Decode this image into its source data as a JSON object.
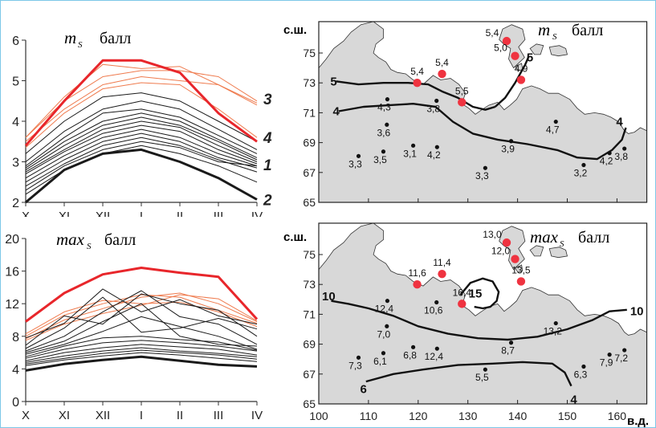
{
  "months": [
    "X",
    "XI",
    "XII",
    "I",
    "II",
    "III",
    "IV"
  ],
  "top_left": {
    "title_var": "m",
    "title_sub": "S",
    "title_unit": "балл",
    "ylim": [
      2,
      6
    ],
    "yticks": [
      "2",
      "3",
      "4",
      "5",
      "6"
    ],
    "curve_labels": [
      {
        "text": "3",
        "value": 4.55
      },
      {
        "text": "4",
        "value": 3.6
      },
      {
        "text": "1",
        "value": 2.93
      },
      {
        "text": "2",
        "value": 2.07
      }
    ]
  },
  "bottom_left": {
    "title_var": "max",
    "title_sub": "S",
    "title_unit": "балл",
    "ylim": [
      0,
      20
    ],
    "yticks": [
      "0",
      "4",
      "8",
      "12",
      "16",
      "20"
    ]
  },
  "top_map": {
    "lat_label": "с.ш.",
    "title_var": "m",
    "title_sub": "S",
    "title_unit": "балл",
    "lat_ticks": [
      "65",
      "67",
      "69",
      "71",
      "73",
      "75"
    ],
    "contour_labels": [
      {
        "text": "5",
        "lon": 103,
        "lat": 73.1
      },
      {
        "text": "4",
        "lon": 103.5,
        "lat": 71.1
      },
      {
        "text": "5",
        "lon": 142.5,
        "lat": 74.7
      },
      {
        "text": "4",
        "lon": 160.5,
        "lat": 70.4
      }
    ],
    "stations": [
      {
        "v": "5,4",
        "lon": 137.8,
        "lat": 75.8,
        "red": true
      },
      {
        "v": "5,0",
        "lon": 139.5,
        "lat": 74.8,
        "red": true
      },
      {
        "v": "4,9",
        "lon": 140.7,
        "lat": 73.2,
        "red": true
      },
      {
        "v": "5,4",
        "lon": 124.8,
        "lat": 73.6,
        "red": true
      },
      {
        "v": "5,4",
        "lon": 119.8,
        "lat": 73.0,
        "red": true
      },
      {
        "v": "5,5",
        "lon": 128.8,
        "lat": 71.7,
        "red": true
      },
      {
        "v": "4,3",
        "lon": 113.8,
        "lat": 71.9,
        "red": false
      },
      {
        "v": "3,8",
        "lon": 123.7,
        "lat": 71.8,
        "red": false
      },
      {
        "v": "3,6",
        "lon": 113.7,
        "lat": 70.2,
        "red": false
      },
      {
        "v": "3,1",
        "lon": 119.0,
        "lat": 68.8,
        "red": false
      },
      {
        "v": "4,2",
        "lon": 123.8,
        "lat": 68.7,
        "red": false
      },
      {
        "v": "3,3",
        "lon": 108.0,
        "lat": 68.1,
        "red": false
      },
      {
        "v": "3,5",
        "lon": 113.0,
        "lat": 68.4,
        "red": false
      },
      {
        "v": "3,9",
        "lon": 138.7,
        "lat": 69.1,
        "red": false
      },
      {
        "v": "3,3",
        "lon": 133.5,
        "lat": 67.3,
        "red": false
      },
      {
        "v": "4,7",
        "lon": 147.7,
        "lat": 70.4,
        "red": false
      },
      {
        "v": "4,2",
        "lon": 158.5,
        "lat": 68.3,
        "red": false
      },
      {
        "v": "3,2",
        "lon": 153.3,
        "lat": 67.5,
        "red": false
      },
      {
        "v": "3,8",
        "lon": 161.5,
        "lat": 68.6,
        "red": false
      }
    ]
  },
  "bottom_map": {
    "lat_label": "с.ш.",
    "title_var": "max",
    "title_sub": "S",
    "title_unit": "балл",
    "lat_ticks": [
      "65",
      "67",
      "69",
      "71",
      "73",
      "75"
    ],
    "lon_ticks": [
      "100",
      "110",
      "120",
      "130",
      "140",
      "150",
      "160"
    ],
    "lon_label": "в.д.",
    "contour_labels": [
      {
        "text": "10",
        "lon": 102,
        "lat": 72.2
      },
      {
        "text": "15",
        "lon": 131.5,
        "lat": 72.4
      },
      {
        "text": "10",
        "lon": 164.0,
        "lat": 71.2
      },
      {
        "text": "6",
        "lon": 109.0,
        "lat": 66.0
      },
      {
        "text": "4",
        "lon": 151.3,
        "lat": 65.3
      }
    ],
    "stations": [
      {
        "v": "13,0",
        "lon": 137.8,
        "lat": 75.8,
        "red": true
      },
      {
        "v": "12,0",
        "lon": 139.5,
        "lat": 74.7,
        "red": true
      },
      {
        "v": "13,5",
        "lon": 140.7,
        "lat": 73.2,
        "red": true
      },
      {
        "v": "11,4",
        "lon": 124.8,
        "lat": 73.7,
        "red": true
      },
      {
        "v": "11,6",
        "lon": 119.8,
        "lat": 73.0,
        "red": true
      },
      {
        "v": "16,4",
        "lon": 128.8,
        "lat": 71.7,
        "red": true
      },
      {
        "v": "12,4",
        "lon": 113.8,
        "lat": 71.9,
        "red": false
      },
      {
        "v": "10,6",
        "lon": 123.7,
        "lat": 71.8,
        "red": false
      },
      {
        "v": "7,0",
        "lon": 113.7,
        "lat": 70.2,
        "red": false
      },
      {
        "v": "6,8",
        "lon": 119.0,
        "lat": 68.8,
        "red": false
      },
      {
        "v": "12,4",
        "lon": 123.8,
        "lat": 68.7,
        "red": false
      },
      {
        "v": "7,3",
        "lon": 108.0,
        "lat": 68.1,
        "red": false
      },
      {
        "v": "6,1",
        "lon": 113.0,
        "lat": 68.4,
        "red": false
      },
      {
        "v": "8,7",
        "lon": 138.7,
        "lat": 69.1,
        "red": false
      },
      {
        "v": "5,5",
        "lon": 133.5,
        "lat": 67.3,
        "red": false
      },
      {
        "v": "13,2",
        "lon": 147.7,
        "lat": 70.4,
        "red": false
      },
      {
        "v": "7,9",
        "lon": 158.5,
        "lat": 68.3,
        "red": false
      },
      {
        "v": "6,3",
        "lon": 153.3,
        "lat": 67.5,
        "red": false
      },
      {
        "v": "7,2",
        "lon": 161.5,
        "lat": 68.6,
        "red": false
      }
    ]
  },
  "chart_data": [
    {
      "type": "line",
      "title": "mS, балл",
      "categories": [
        "X",
        "XI",
        "XII",
        "I",
        "II",
        "III",
        "IV"
      ],
      "ylim": [
        2,
        6
      ],
      "grid": false,
      "colors": {
        "red": "#e8262b",
        "red_light": "#ef7b4e",
        "black": "#111111"
      },
      "series": [
        {
          "name": "3",
          "color": "red",
          "bold": true,
          "values": [
            3.4,
            4.5,
            5.5,
            5.5,
            5.2,
            4.2,
            3.5
          ]
        },
        {
          "color": "red_light",
          "values": [
            3.6,
            4.6,
            5.4,
            5.3,
            5.35,
            4.9,
            4.4
          ]
        },
        {
          "color": "red_light",
          "values": [
            3.6,
            4.5,
            5.1,
            5.25,
            5.25,
            5.1,
            4.5
          ]
        },
        {
          "color": "red_light",
          "values": [
            3.5,
            4.3,
            4.9,
            5.1,
            5.0,
            4.9,
            4.45
          ]
        },
        {
          "color": "red_light",
          "values": [
            3.35,
            4.2,
            4.8,
            4.95,
            4.9,
            4.3,
            3.6
          ]
        },
        {
          "color": "black",
          "values": [
            3.2,
            4.0,
            4.6,
            4.7,
            4.5,
            4.0,
            3.5
          ]
        },
        {
          "color": "black",
          "values": [
            3.0,
            3.75,
            4.3,
            4.5,
            4.3,
            3.8,
            3.3
          ]
        },
        {
          "color": "black",
          "values": [
            2.9,
            3.6,
            4.2,
            4.3,
            4.1,
            3.65,
            3.2
          ]
        },
        {
          "color": "black",
          "values": [
            2.85,
            3.5,
            4.0,
            4.2,
            4.0,
            3.55,
            3.1
          ]
        },
        {
          "color": "black",
          "values": [
            2.8,
            3.4,
            3.9,
            4.1,
            3.9,
            3.5,
            3.05
          ]
        },
        {
          "color": "black",
          "values": [
            2.75,
            3.3,
            3.8,
            4.0,
            3.85,
            3.4,
            3.0
          ]
        },
        {
          "color": "black",
          "values": [
            2.7,
            3.25,
            3.7,
            3.9,
            3.75,
            3.3,
            2.95
          ]
        },
        {
          "color": "black",
          "values": [
            2.6,
            3.15,
            3.6,
            3.8,
            3.6,
            3.2,
            2.9
          ]
        },
        {
          "color": "black",
          "values": [
            2.5,
            3.05,
            3.5,
            3.7,
            3.5,
            3.1,
            2.85
          ]
        },
        {
          "color": "black",
          "values": [
            2.4,
            2.95,
            3.4,
            3.6,
            3.4,
            3.05,
            2.75
          ]
        },
        {
          "name": "1",
          "color": "black",
          "values": [
            2.3,
            2.9,
            3.3,
            3.5,
            3.35,
            3.0,
            2.9
          ]
        },
        {
          "color": "black",
          "values": [
            2.2,
            2.8,
            3.2,
            3.4,
            3.2,
            2.9,
            2.5
          ]
        },
        {
          "name": "2",
          "color": "black",
          "bold": true,
          "values": [
            2.0,
            2.8,
            3.2,
            3.3,
            3.0,
            2.6,
            2.07
          ]
        }
      ]
    },
    {
      "type": "line",
      "title": "maxS, балл",
      "categories": [
        "X",
        "XI",
        "XII",
        "I",
        "II",
        "III",
        "IV"
      ],
      "ylim": [
        0,
        20
      ],
      "grid": false,
      "series": [
        {
          "color": "red",
          "bold": true,
          "values": [
            9.8,
            13.3,
            15.6,
            16.4,
            15.8,
            15.3,
            10.1
          ]
        },
        {
          "color": "red_light",
          "values": [
            8.0,
            10.6,
            12.0,
            13.1,
            12.8,
            11.2,
            9.6
          ]
        },
        {
          "color": "red_light",
          "values": [
            7.7,
            10.0,
            11.4,
            12.8,
            13.3,
            12.0,
            9.8
          ]
        },
        {
          "color": "red_light",
          "values": [
            8.3,
            11.0,
            12.4,
            12.0,
            12.2,
            11.0,
            9.2
          ]
        },
        {
          "color": "red_light",
          "values": [
            7.5,
            9.5,
            10.8,
            11.8,
            13.1,
            12.6,
            9.9
          ]
        },
        {
          "color": "black",
          "values": [
            7.8,
            9.6,
            13.8,
            11.0,
            12.5,
            10.5,
            9.5
          ]
        },
        {
          "color": "black",
          "values": [
            6.9,
            10.5,
            9.5,
            13.2,
            12.0,
            11.2,
            8.0
          ]
        },
        {
          "color": "black",
          "values": [
            6.5,
            9.0,
            12.8,
            8.5,
            9.0,
            10.2,
            8.9
          ]
        },
        {
          "color": "black",
          "values": [
            6.2,
            8.0,
            11.0,
            13.6,
            10.4,
            9.5,
            7.0
          ]
        },
        {
          "color": "black",
          "values": [
            6.0,
            7.4,
            9.8,
            12.0,
            8.0,
            7.0,
            6.8
          ]
        },
        {
          "color": "black",
          "values": [
            5.8,
            7.0,
            8.6,
            10.4,
            9.2,
            8.0,
            6.4
          ]
        },
        {
          "color": "black",
          "values": [
            5.5,
            6.8,
            7.8,
            8.0,
            7.6,
            7.3,
            6.3
          ]
        },
        {
          "color": "black",
          "values": [
            5.3,
            6.4,
            7.2,
            7.5,
            7.2,
            6.8,
            6.2
          ]
        },
        {
          "color": "black",
          "values": [
            5.0,
            6.0,
            6.6,
            7.0,
            6.7,
            6.4,
            5.7
          ]
        },
        {
          "color": "black",
          "values": [
            4.8,
            5.6,
            6.2,
            6.6,
            6.2,
            5.9,
            5.5
          ]
        },
        {
          "color": "black",
          "values": [
            4.6,
            5.3,
            5.9,
            6.3,
            6.0,
            5.7,
            5.2
          ]
        },
        {
          "color": "black",
          "values": [
            4.4,
            5.1,
            5.6,
            6.0,
            5.7,
            5.3,
            4.9
          ]
        },
        {
          "color": "black",
          "bold": true,
          "values": [
            3.8,
            4.6,
            5.1,
            5.5,
            5.0,
            4.5,
            4.3
          ]
        }
      ]
    }
  ]
}
